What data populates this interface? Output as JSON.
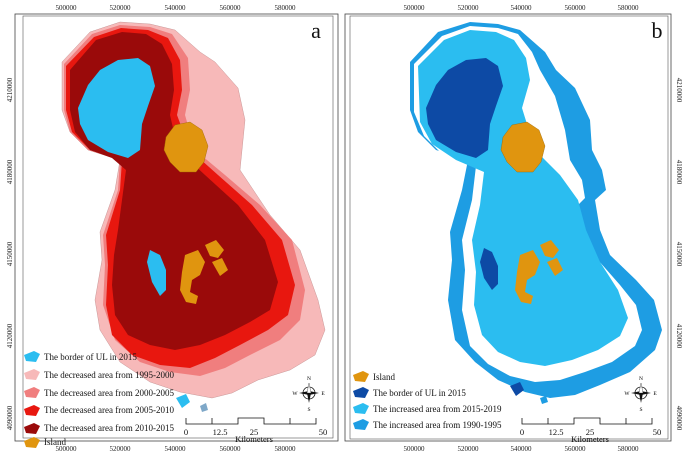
{
  "panels": [
    {
      "id": "a",
      "letter": "a",
      "x_ticks": [
        "500000",
        "520000",
        "540000",
        "560000",
        "580000"
      ],
      "y_ticks": [
        "4210000",
        "4180000",
        "4150000",
        "4120000",
        "4090000"
      ],
      "legend": [
        {
          "label": "The border of UL in 2015",
          "color": "#2bbdf0"
        },
        {
          "label": "The decreased area from 1995-2000",
          "color": "#f7b9b9"
        },
        {
          "label": "The decreased area from 2000-2005",
          "color": "#f07e7e"
        },
        {
          "label": "The decreased area from 2005-2010",
          "color": "#e8170f"
        },
        {
          "label": "The decreased area from 2010-2015",
          "color": "#9a0a0a"
        },
        {
          "label": "Island",
          "color": "#e0950f"
        }
      ],
      "scale": {
        "ticks": [
          "0",
          "12.5",
          "25",
          "50"
        ],
        "unit": "Kilometers"
      },
      "compass": {
        "n": "N",
        "s": "S",
        "e": "E",
        "w": "W"
      }
    },
    {
      "id": "b",
      "letter": "b",
      "x_ticks": [
        "500000",
        "520000",
        "540000",
        "560000",
        "580000"
      ],
      "y_ticks": [
        "4210000",
        "4180000",
        "4150000",
        "4120000",
        "4090000"
      ],
      "legend": [
        {
          "label": "Island",
          "color": "#e0950f"
        },
        {
          "label": "The border of UL in 2015",
          "color": "#0d4aa5"
        },
        {
          "label": "The increased area from 2015-2019",
          "color": "#2bbdf0"
        },
        {
          "label": "The increased area from 1990-1995",
          "color": "#1e9de3"
        }
      ],
      "scale": {
        "ticks": [
          "0",
          "12.5",
          "25",
          "50"
        ],
        "unit": "Kilometers"
      },
      "compass": {
        "n": "N",
        "s": "S",
        "e": "E",
        "w": "W"
      }
    }
  ]
}
